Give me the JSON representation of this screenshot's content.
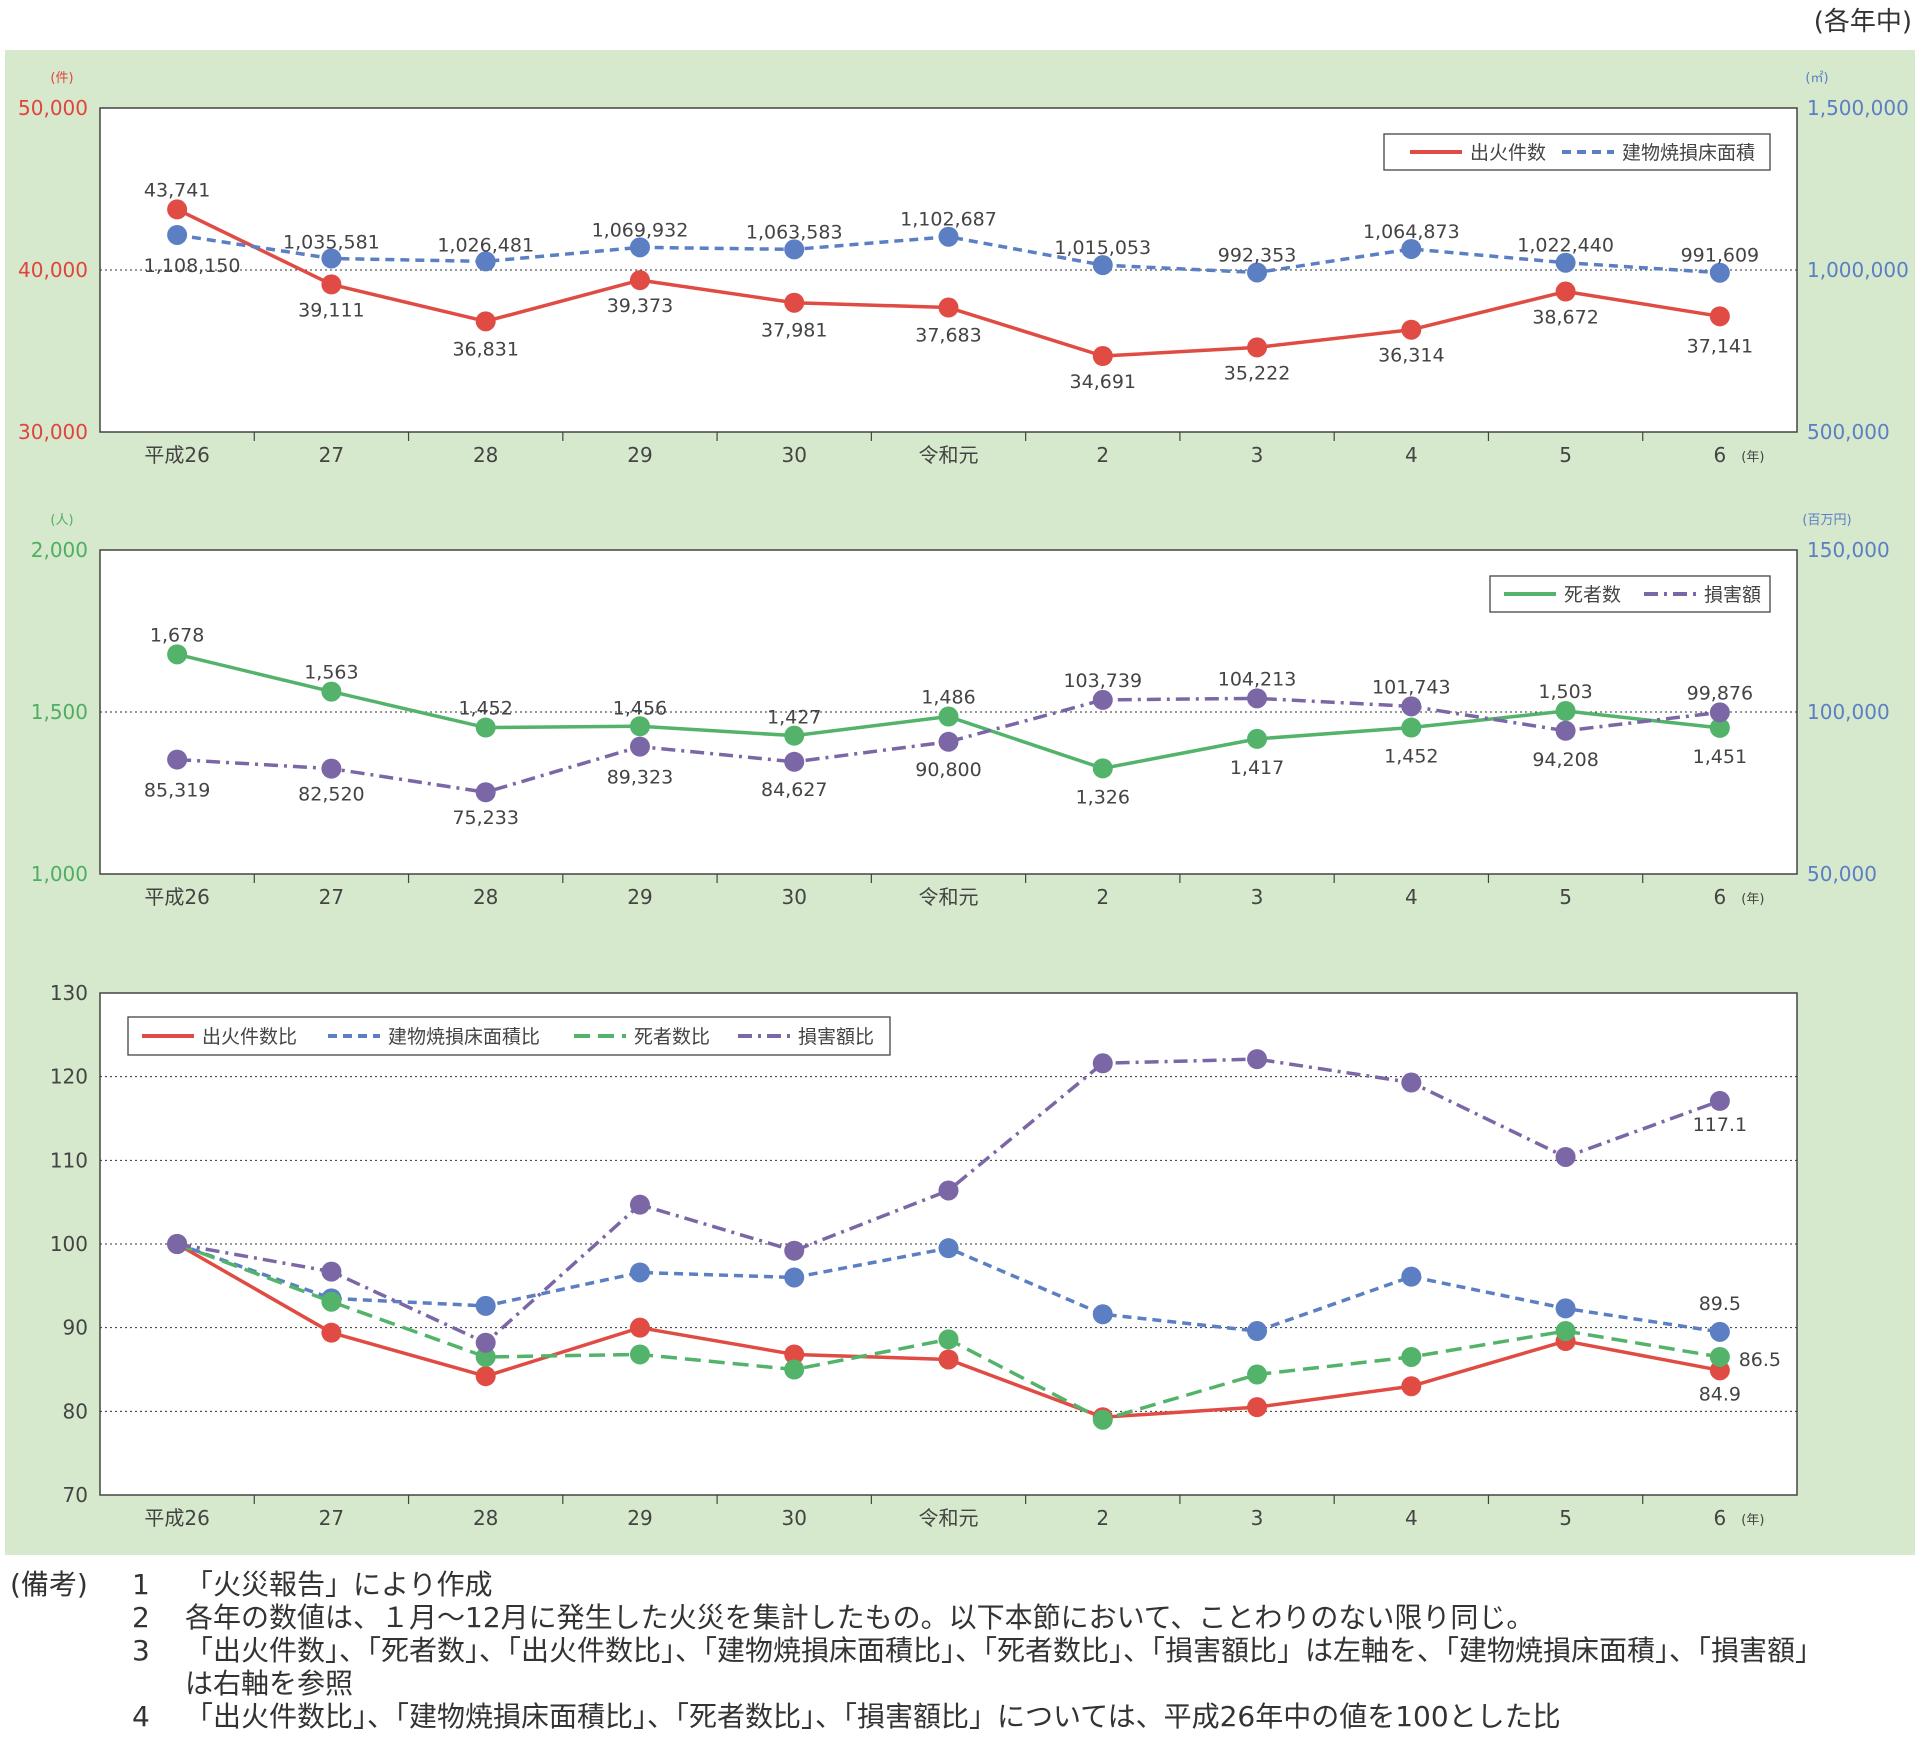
{
  "period_label": "(各年中)",
  "colors": {
    "panel_bg": "#d6e9cc",
    "red": "#e04b44",
    "blue": "#5b7fc2",
    "green": "#53b36a",
    "purple": "#7b67a6",
    "axis_text": "#444444",
    "red_axis": "#e0443c",
    "blue_axis": "#5b7fc2",
    "green_axis": "#4fae62"
  },
  "chart_data": [
    {
      "type": "line",
      "categories": [
        "平成26",
        "27",
        "28",
        "29",
        "30",
        "令和元",
        "2",
        "3",
        "4",
        "5",
        "6"
      ],
      "year_unit": "(年)",
      "left_axis": {
        "unit": "(件)",
        "ylim": [
          30000,
          50000
        ],
        "ticks": [
          "30,000",
          "40,000",
          "50,000"
        ],
        "tick_values": [
          30000,
          40000,
          50000
        ],
        "reference": 40000
      },
      "right_axis": {
        "unit": "(㎡)",
        "ylim": [
          500000,
          1500000
        ],
        "ticks": [
          "500,000",
          "1,000,000",
          "1,500,000"
        ],
        "tick_values": [
          500000,
          1000000,
          1500000
        ]
      },
      "series": [
        {
          "name": "出火件数",
          "axis": "left",
          "style": "solid",
          "color": "#e04b44",
          "values": [
            43741,
            39111,
            36831,
            39373,
            37981,
            37683,
            34691,
            35222,
            36314,
            38672,
            37141
          ],
          "labels": [
            "43,741",
            "39,111",
            "36,831",
            "39,373",
            "37,981",
            "37,683",
            "34,691",
            "35,222",
            "36,314",
            "38,672",
            "37,141"
          ]
        },
        {
          "name": "建物焼損床面積",
          "axis": "right",
          "style": "dashed",
          "color": "#5b7fc2",
          "values": [
            1108150,
            1035581,
            1026481,
            1069932,
            1063583,
            1102687,
            1015053,
            992353,
            1064873,
            1022440,
            991609
          ],
          "labels": [
            "1,108,150",
            "1,035,581",
            "1,026,481",
            "1,069,932",
            "1,063,583",
            "1,102,687",
            "1,015,053",
            "992,353",
            "1,064,873",
            "1,022,440",
            "991,609"
          ]
        }
      ]
    },
    {
      "type": "line",
      "categories": [
        "平成26",
        "27",
        "28",
        "29",
        "30",
        "令和元",
        "2",
        "3",
        "4",
        "5",
        "6"
      ],
      "year_unit": "(年)",
      "left_axis": {
        "unit": "(人)",
        "ylim": [
          1000,
          2000
        ],
        "ticks": [
          "1,000",
          "1,500",
          "2,000"
        ],
        "tick_values": [
          1000,
          1500,
          2000
        ],
        "reference": 1500
      },
      "right_axis": {
        "unit": "(百万円)",
        "ylim": [
          50000,
          150000
        ],
        "ticks": [
          "50,000",
          "100,000",
          "150,000"
        ],
        "tick_values": [
          50000,
          100000,
          150000
        ]
      },
      "series": [
        {
          "name": "死者数",
          "axis": "left",
          "style": "solid",
          "color": "#53b36a",
          "values": [
            1678,
            1563,
            1452,
            1456,
            1427,
            1486,
            1326,
            1417,
            1452,
            1503,
            1451
          ],
          "labels": [
            "1,678",
            "1,563",
            "1,452",
            "1,456",
            "1,427",
            "1,486",
            "1,326",
            "1,417",
            "1,452",
            "1,503",
            "1,451"
          ]
        },
        {
          "name": "損害額",
          "axis": "right",
          "style": "dashdot",
          "color": "#7b67a6",
          "values": [
            85319,
            82520,
            75233,
            89323,
            84627,
            90800,
            103739,
            104213,
            101743,
            94208,
            99876
          ],
          "labels": [
            "85,319",
            "82,520",
            "75,233",
            "89,323",
            "84,627",
            "90,800",
            "103,739",
            "104,213",
            "101,743",
            "94,208",
            "99,876"
          ]
        }
      ]
    },
    {
      "type": "line",
      "categories": [
        "平成26",
        "27",
        "28",
        "29",
        "30",
        "令和元",
        "2",
        "3",
        "4",
        "5",
        "6"
      ],
      "year_unit": "(年)",
      "left_axis": {
        "ylim": [
          70,
          130
        ],
        "ticks": [
          "70",
          "80",
          "90",
          "100",
          "110",
          "120",
          "130"
        ],
        "tick_values": [
          70,
          80,
          90,
          100,
          110,
          120,
          130
        ],
        "gridlines": [
          80,
          90,
          100,
          110,
          120
        ]
      },
      "series": [
        {
          "name": "出火件数比",
          "style": "solid",
          "color": "#e04b44",
          "values": [
            100,
            89.4,
            84.2,
            90.0,
            86.8,
            86.2,
            79.3,
            80.5,
            83.0,
            88.4,
            84.9
          ],
          "end_label": "84.9"
        },
        {
          "name": "建物焼損床面積比",
          "style": "dashed",
          "color": "#5b7fc2",
          "values": [
            100,
            93.5,
            92.6,
            96.6,
            96.0,
            99.5,
            91.6,
            89.6,
            96.1,
            92.3,
            89.5
          ],
          "end_label": "89.5"
        },
        {
          "name": "死者数比",
          "style": "longdash",
          "color": "#53b36a",
          "values": [
            100,
            93.1,
            86.5,
            86.8,
            85.0,
            88.6,
            79.0,
            84.4,
            86.5,
            89.6,
            86.5
          ],
          "end_label": "86.5"
        },
        {
          "name": "損害額比",
          "style": "dashdot",
          "color": "#7b67a6",
          "values": [
            100,
            96.7,
            88.2,
            104.7,
            99.2,
            106.4,
            121.6,
            122.1,
            119.3,
            110.4,
            117.1
          ],
          "end_label": "117.1"
        }
      ]
    }
  ],
  "notes": {
    "label": "(備考)",
    "items": [
      {
        "num": "1",
        "text": "「火災報告」により作成"
      },
      {
        "num": "2",
        "text": "各年の数値は、１月〜12月に発生した火災を集計したもの。以下本節において、ことわりのない限り同じ。"
      },
      {
        "num": "3",
        "text": "「出火件数」、「死者数」、「出火件数比」、「建物焼損床面積比」、「死者数比」、「損害額比」は左軸を、「建物焼損床面積」、「損害額」",
        "cont": "は右軸を参照"
      },
      {
        "num": "4",
        "text": "「出火件数比」、「建物焼損床面積比」、「死者数比」、「損害額比」については、平成26年中の値を100とした比"
      }
    ]
  }
}
